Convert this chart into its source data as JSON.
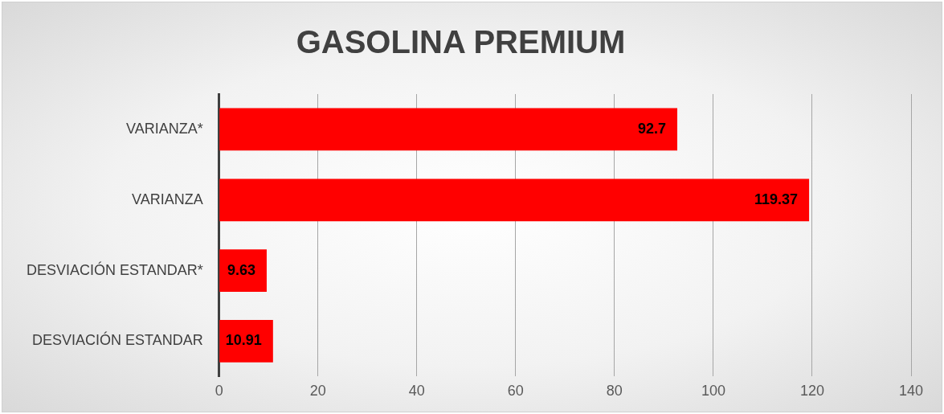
{
  "chart_data": {
    "type": "bar",
    "orientation": "horizontal",
    "title": "GASOLINA PREMIUM",
    "categories": [
      "VARIANZA*",
      "VARIANZA",
      "DESVIACIÓN ESTANDAR*",
      "DESVIACIÓN ESTANDAR"
    ],
    "values": [
      92.7,
      119.37,
      9.63,
      10.91
    ],
    "color": "#ff0000",
    "xlim": [
      0,
      140
    ],
    "xticks": [
      0,
      20,
      40,
      60,
      80,
      100,
      120,
      140
    ],
    "grid": "x",
    "data_labels": true,
    "legend": false
  }
}
